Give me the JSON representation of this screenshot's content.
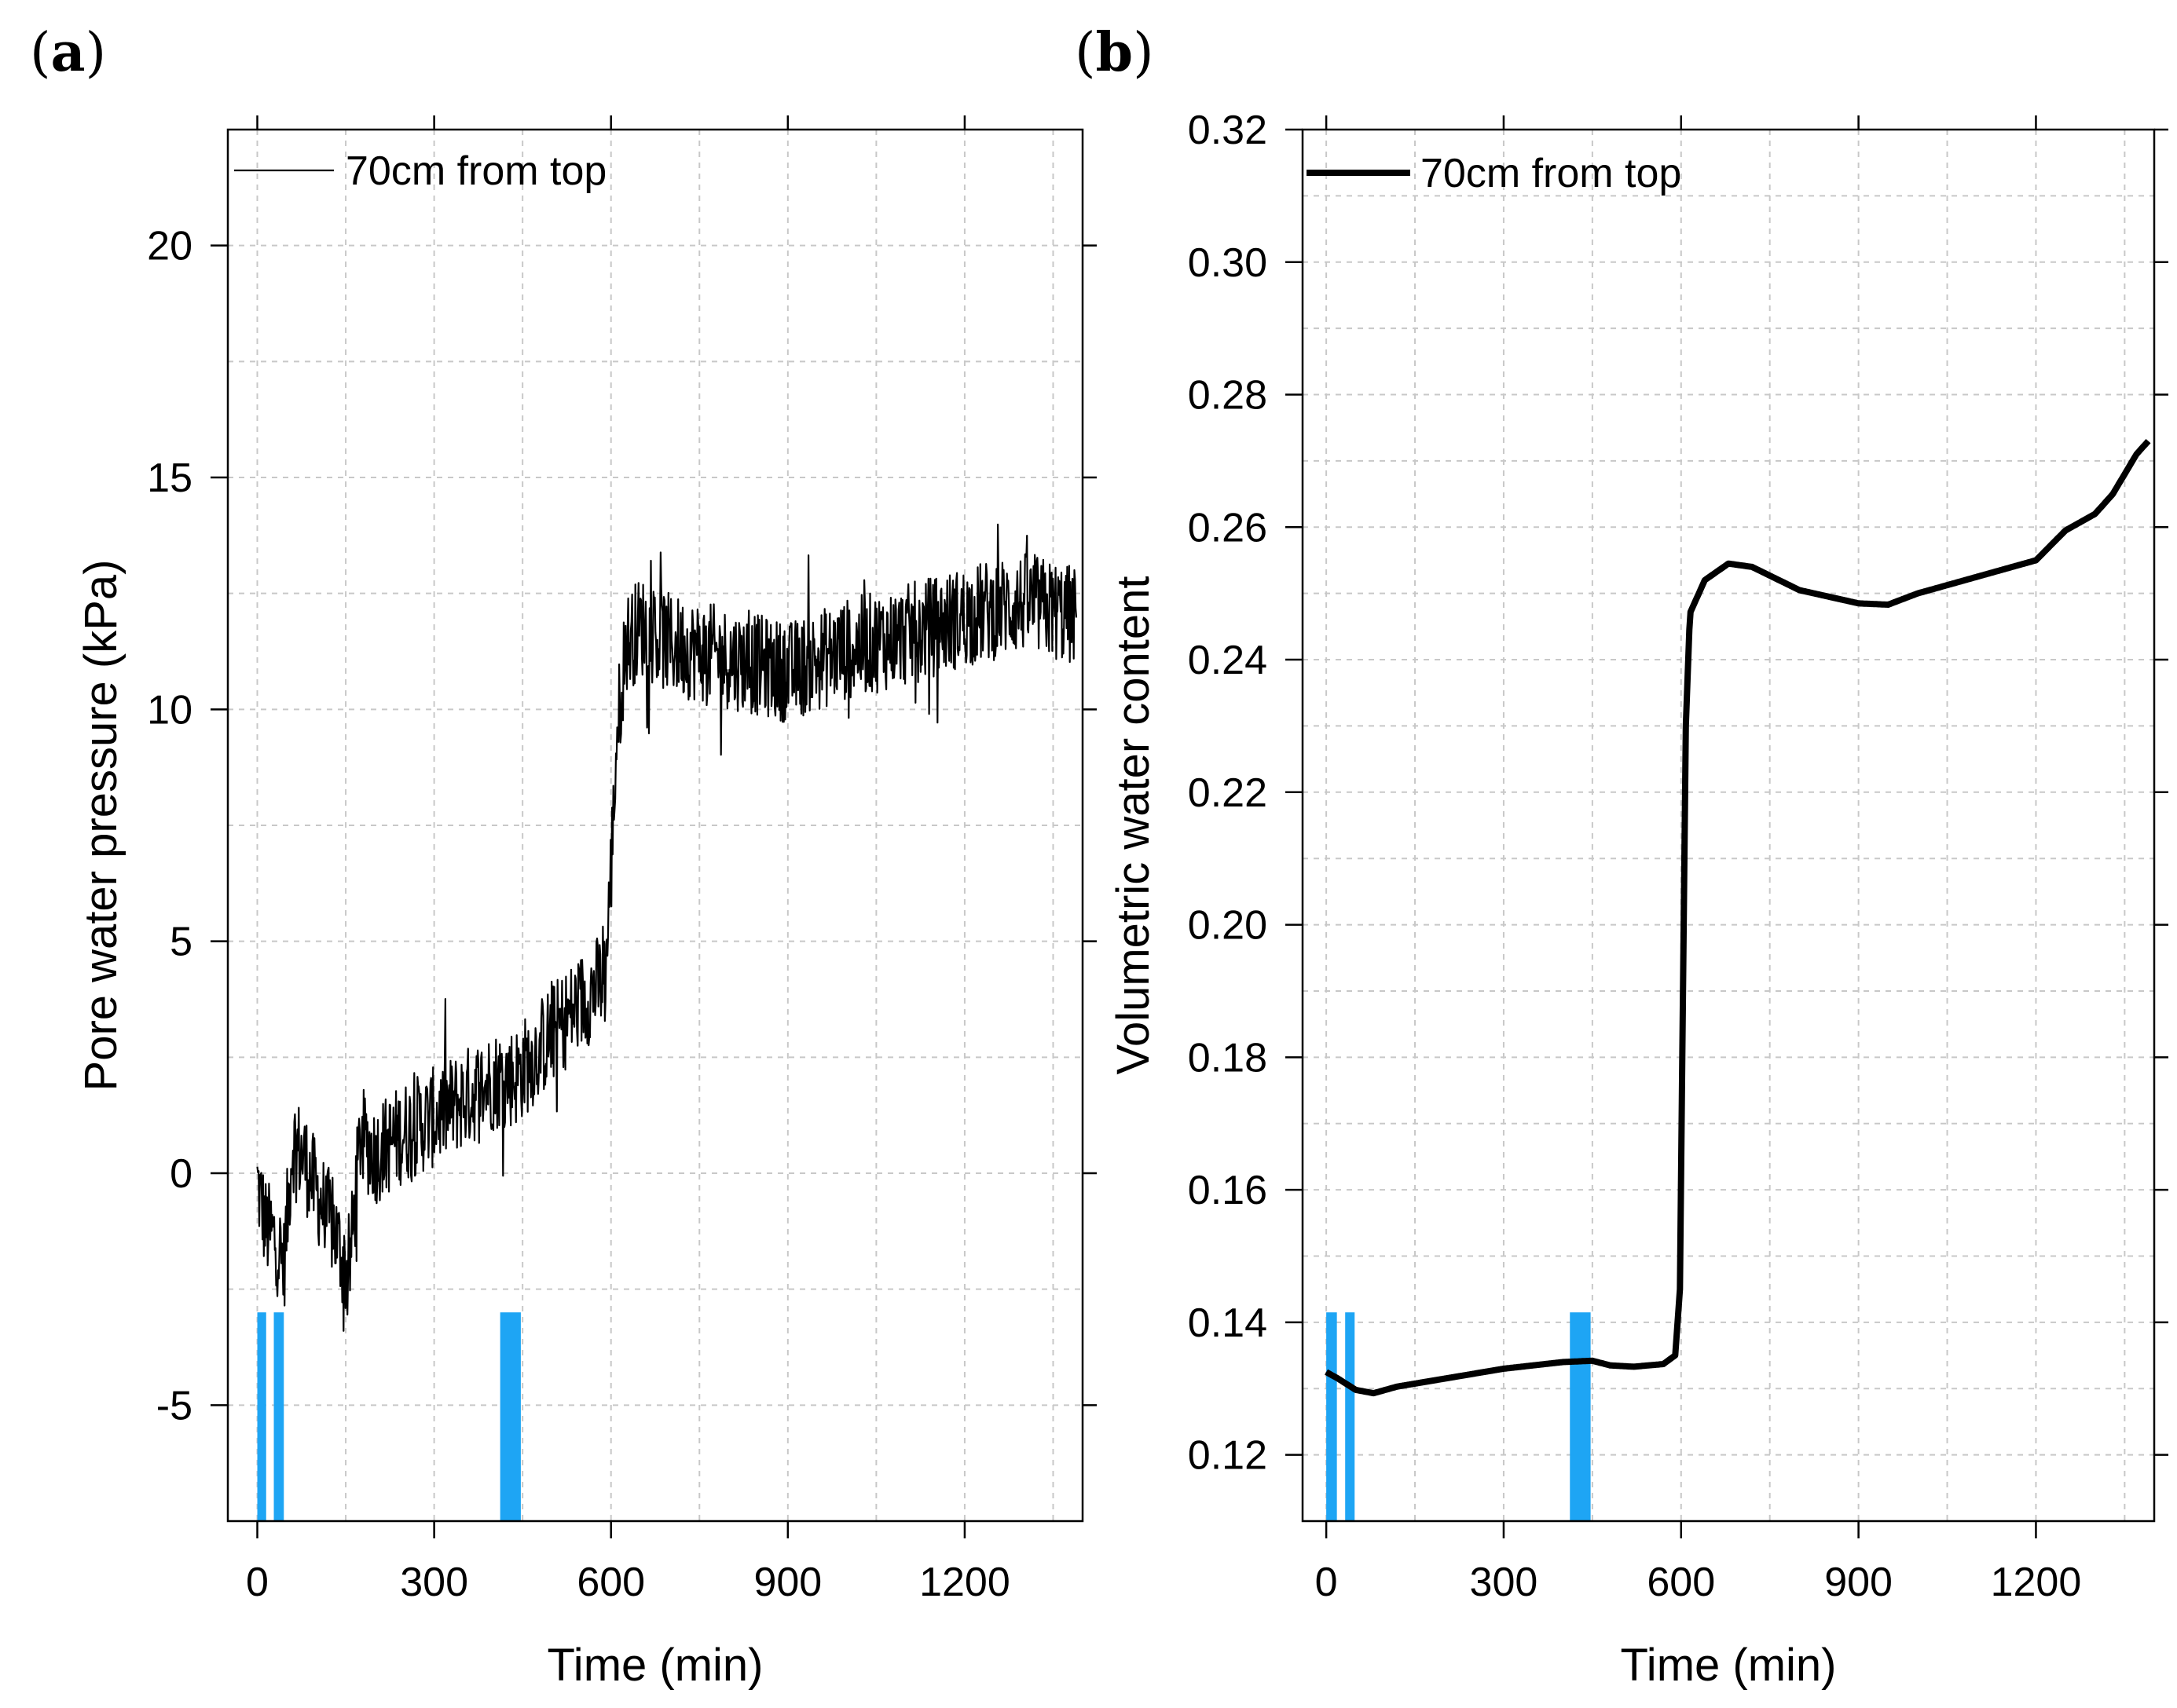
{
  "figure": {
    "panels": [
      "a",
      "b"
    ]
  },
  "colors": {
    "line": "#000000",
    "rain_bar": "#1ea5f4",
    "grid": "#c8c8c8"
  },
  "chart_data": [
    {
      "id": "a",
      "panel_label": "a",
      "type": "line",
      "title": "",
      "xlabel": "Time (min)",
      "ylabel": "Pore water pressure (kPa)",
      "xlim": [
        -50,
        1400
      ],
      "ylim": [
        -7.5,
        22.5
      ],
      "xticks": [
        0,
        300,
        600,
        900,
        1200
      ],
      "yticks": [
        -5,
        0,
        5,
        10,
        15,
        20
      ],
      "xtick_labels": [
        "0",
        "300",
        "600",
        "900",
        "1200"
      ],
      "ytick_labels": [
        "-5",
        "0",
        "5",
        "10",
        "15",
        "20"
      ],
      "grid": true,
      "legend": {
        "entries": [
          "70cm from top"
        ],
        "position": "top-left"
      },
      "series": [
        {
          "name": "70cm from top",
          "noisy": true,
          "noise_amplitude": 1.1,
          "x": [
            0,
            15,
            30,
            45,
            60,
            80,
            100,
            130,
            155,
            175,
            200,
            250,
            300,
            350,
            400,
            440,
            500,
            550,
            590,
            600,
            610,
            625,
            650,
            700,
            800,
            900,
            1000,
            1100,
            1200,
            1300,
            1390
          ],
          "values": [
            -0.2,
            -1.2,
            -1.4,
            -2.0,
            0.7,
            0.3,
            -0.4,
            -1.2,
            -2.3,
            0.8,
            0.4,
            0.9,
            1.2,
            1.6,
            2.0,
            2.1,
            3.0,
            3.7,
            4.2,
            6.5,
            9.5,
            11.4,
            11.8,
            11.4,
            11.1,
            10.8,
            11.3,
            11.6,
            12.0,
            12.3,
            12.0
          ]
        }
      ],
      "rain_events": [
        {
          "start": 0,
          "end": 15
        },
        {
          "start": 28,
          "end": 45
        },
        {
          "start": 412,
          "end": 447
        }
      ],
      "rain_bar_range": [
        -7.5,
        -3.0
      ]
    },
    {
      "id": "b",
      "panel_label": "b",
      "type": "line",
      "title": "",
      "xlabel": "Time (min)",
      "ylabel": "Volumetric water content",
      "xlim": [
        -40,
        1400
      ],
      "ylim": [
        0.11,
        0.32
      ],
      "xticks": [
        0,
        300,
        600,
        900,
        1200
      ],
      "yticks": [
        0.12,
        0.14,
        0.16,
        0.18,
        0.2,
        0.22,
        0.24,
        0.26,
        0.28,
        0.3,
        0.32
      ],
      "xtick_labels": [
        "0",
        "300",
        "600",
        "900",
        "1200"
      ],
      "ytick_labels": [
        "0.12",
        "0.14",
        "0.16",
        "0.18",
        "0.20",
        "0.22",
        "0.24",
        "0.26",
        "0.28",
        "0.30",
        "0.32"
      ],
      "grid": true,
      "legend": {
        "entries": [
          "70cm from top"
        ],
        "position": "top-left"
      },
      "series": [
        {
          "name": "70cm from top",
          "noisy": false,
          "x": [
            0,
            20,
            50,
            80,
            120,
            200,
            300,
            400,
            450,
            480,
            520,
            570,
            590,
            598,
            602,
            608,
            615,
            640,
            680,
            720,
            800,
            900,
            950,
            1000,
            1100,
            1200,
            1250,
            1300,
            1330,
            1370,
            1390
          ],
          "values": [
            0.1325,
            0.1315,
            0.1298,
            0.1293,
            0.1303,
            0.1315,
            0.133,
            0.134,
            0.1342,
            0.1335,
            0.1333,
            0.1337,
            0.135,
            0.145,
            0.18,
            0.23,
            0.247,
            0.252,
            0.2545,
            0.254,
            0.2505,
            0.2485,
            0.2483,
            0.25,
            0.2525,
            0.255,
            0.2595,
            0.262,
            0.265,
            0.271,
            0.273
          ]
        }
      ],
      "rain_events": [
        {
          "start": 0,
          "end": 18
        },
        {
          "start": 32,
          "end": 48
        },
        {
          "start": 412,
          "end": 447
        }
      ],
      "rain_bar_range": [
        0.11,
        0.1415
      ]
    }
  ]
}
